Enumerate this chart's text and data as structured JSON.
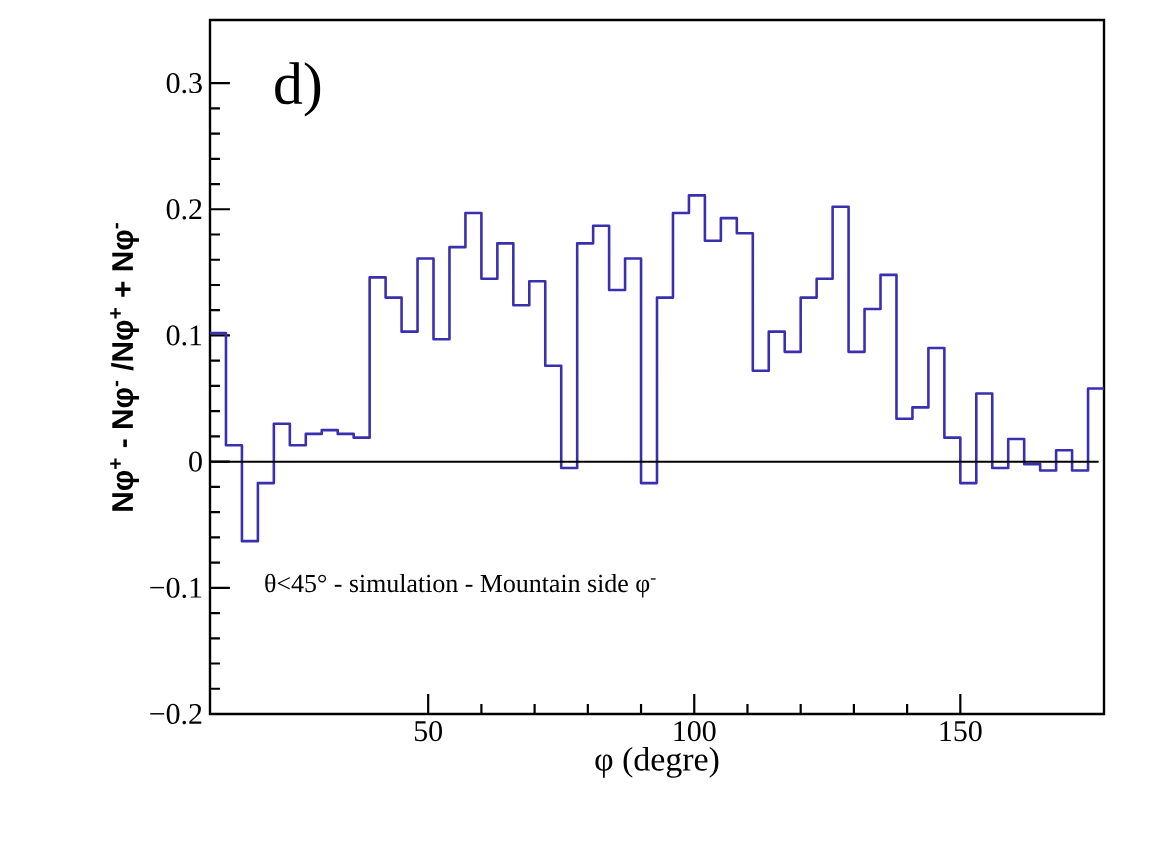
{
  "chart_data": {
    "type": "histogram",
    "xlabel": "φ (degre)",
    "ylabel": "Nφ$^{+}$ - Nφ$^{-}$ /Nφ$^{+}$ + Nφ$^{-}$",
    "annotations": [
      "d)",
      "θ<45° - simulation - Mountain side φ$^{-}$"
    ],
    "color": "#3a2fb0",
    "bins": [
      9,
      12,
      15,
      18,
      21,
      24,
      27,
      30,
      33,
      36,
      39,
      42,
      45,
      48,
      51,
      54,
      57,
      60,
      63,
      66,
      69,
      72,
      75,
      78,
      81,
      84,
      87,
      90,
      93,
      96,
      99,
      102,
      105,
      108,
      111,
      114,
      117,
      120,
      123,
      126,
      129,
      132,
      135,
      138,
      141,
      144,
      147,
      150,
      153,
      156,
      159,
      162,
      165,
      168,
      171,
      174,
      177
    ],
    "values": [
      0.102,
      0.013,
      -0.063,
      -0.017,
      0.03,
      0.013,
      0.022,
      0.025,
      0.022,
      0.019,
      0.146,
      0.13,
      0.103,
      0.161,
      0.097,
      0.17,
      0.197,
      0.145,
      0.173,
      0.124,
      0.143,
      0.076,
      -0.005,
      0.173,
      0.187,
      0.136,
      0.161,
      -0.017,
      0.13,
      0.197,
      0.211,
      0.175,
      0.193,
      0.181,
      0.072,
      0.103,
      0.087,
      0.13,
      0.145,
      0.202,
      0.087,
      0.121,
      0.148,
      0.034,
      0.043,
      0.09,
      0.019,
      -0.017,
      0.054,
      -0.005,
      0.018,
      -0.002,
      -0.007,
      0.009,
      -0.007,
      0.058
    ],
    "xlim": [
      9,
      177
    ],
    "ylim": [
      -0.2,
      0.35
    ],
    "xticks": [
      50,
      100,
      150
    ],
    "yticks": [
      {
        "value": -0.2,
        "label": "−0.2"
      },
      {
        "value": -0.1,
        "label": "−0.1"
      },
      0,
      0.1,
      0.2,
      0.3
    ],
    "ref_lines": [
      {
        "axis": "y",
        "value": 0,
        "color": "#000000"
      }
    ]
  }
}
